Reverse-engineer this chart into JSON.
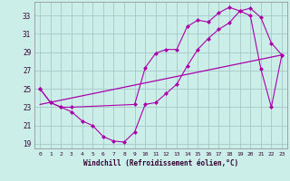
{
  "xlabel": "Windchill (Refroidissement éolien,°C)",
  "bg_color": "#cceee8",
  "grid_color": "#aacccc",
  "line_color": "#aa00aa",
  "xlim": [
    -0.5,
    23.5
  ],
  "ylim": [
    18.5,
    34.5
  ],
  "yticks": [
    19,
    21,
    23,
    25,
    27,
    29,
    31,
    33
  ],
  "xticks": [
    0,
    1,
    2,
    3,
    4,
    5,
    6,
    7,
    8,
    9,
    10,
    11,
    12,
    13,
    14,
    15,
    16,
    17,
    18,
    19,
    20,
    21,
    22,
    23
  ],
  "line1_x": [
    0,
    1,
    2,
    3,
    4,
    5,
    6,
    7,
    8,
    9,
    10,
    11,
    12,
    13,
    14,
    15,
    16,
    17,
    18,
    19,
    20,
    21,
    22,
    23
  ],
  "line1_y": [
    25.0,
    23.5,
    23.0,
    22.5,
    21.5,
    21.0,
    19.8,
    19.3,
    19.2,
    20.3,
    23.3,
    23.5,
    24.5,
    25.5,
    27.5,
    29.3,
    30.5,
    31.5,
    32.2,
    33.5,
    33.8,
    32.8,
    30.0,
    28.7
  ],
  "line2_x": [
    0,
    1,
    2,
    3,
    9,
    10,
    11,
    12,
    13,
    14,
    15,
    16,
    17,
    18,
    19,
    20,
    21,
    22,
    23
  ],
  "line2_y": [
    25.0,
    23.5,
    23.0,
    23.0,
    23.3,
    27.3,
    28.9,
    29.3,
    29.3,
    31.8,
    32.5,
    32.3,
    33.3,
    33.9,
    33.5,
    33.0,
    27.2,
    23.0,
    28.7
  ],
  "line3_x": [
    0,
    23
  ],
  "line3_y": [
    23.3,
    28.7
  ]
}
